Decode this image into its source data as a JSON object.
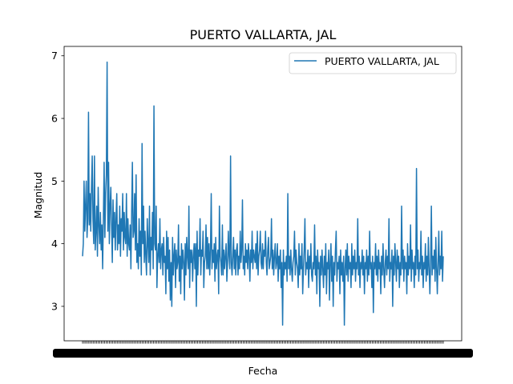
{
  "chart_data": {
    "type": "line",
    "title": "PUERTO VALLARTA, JAL",
    "xlabel": "Fecha",
    "ylabel": "Magnitud",
    "ylim": [
      2.45,
      7.15
    ],
    "yticks": [
      3,
      4,
      5,
      6,
      7
    ],
    "x_tick_labels_legible": false,
    "grid": false,
    "legend_position": "upper right",
    "series": [
      {
        "name": "PUERTO VALLARTA, JAL",
        "color": "#1f77b4",
        "values": [
          3.8,
          4.0,
          5.0,
          4.2,
          4.6,
          5.0,
          4.1,
          4.4,
          6.1,
          4.3,
          4.8,
          4.2,
          4.9,
          5.4,
          4.4,
          4.0,
          5.4,
          3.9,
          4.2,
          4.6,
          3.8,
          4.9,
          4.3,
          4.0,
          4.5,
          3.9,
          4.3,
          3.6,
          4.4,
          5.3,
          4.1,
          4.8,
          5.1,
          6.9,
          4.2,
          5.3,
          4.0,
          4.6,
          4.9,
          4.3,
          3.7,
          4.7,
          4.1,
          4.5,
          3.9,
          4.4,
          4.8,
          3.9,
          4.3,
          4.0,
          4.6,
          3.8,
          4.4,
          4.2,
          4.8,
          3.9,
          4.5,
          4.1,
          4.0,
          4.8,
          3.8,
          4.4,
          4.0,
          3.9,
          4.3,
          3.6,
          4.5,
          5.3,
          4.1,
          4.2,
          4.8,
          3.9,
          5.1,
          3.7,
          4.0,
          3.6,
          4.4,
          3.8,
          4.2,
          3.5,
          5.6,
          4.0,
          4.6,
          3.7,
          4.2,
          3.8,
          3.5,
          4.4,
          4.0,
          3.7,
          4.6,
          3.5,
          4.1,
          3.9,
          4.5,
          3.6,
          6.2,
          4.0,
          3.9,
          4.6,
          3.3,
          3.8,
          4.0,
          3.7,
          4.4,
          3.6,
          3.9,
          4.0,
          3.5,
          4.1,
          3.7,
          3.8,
          3.2,
          4.2,
          3.6,
          4.1,
          3.4,
          3.9,
          3.1,
          3.7,
          3.0,
          4.1,
          3.5,
          3.8,
          4.0,
          3.3,
          3.9,
          3.6,
          3.7,
          4.3,
          3.4,
          3.8,
          3.2,
          4.0,
          3.6,
          3.9,
          3.7,
          3.1,
          4.0,
          3.5,
          4.1,
          3.8,
          3.6,
          4.6,
          3.3,
          3.9,
          3.7,
          3.9,
          3.4,
          3.8,
          4.0,
          3.6,
          4.0,
          3.0,
          4.2,
          3.5,
          3.9,
          3.8,
          4.4,
          3.5,
          3.9,
          3.8,
          4.2,
          3.3,
          3.7,
          3.8,
          4.3,
          3.6,
          4.1,
          3.6,
          4.0,
          3.5,
          3.9,
          4.8,
          3.6,
          3.9,
          3.7,
          4.0,
          3.4,
          4.1,
          3.6,
          3.8,
          3.9,
          3.2,
          4.6,
          3.8,
          3.7,
          3.5,
          4.3,
          3.5,
          3.9,
          3.6,
          3.8,
          4.0,
          3.4,
          3.7,
          4.2,
          3.8,
          3.6,
          5.4,
          3.7,
          3.5,
          3.8,
          4.1,
          3.6,
          3.9,
          3.5,
          3.9,
          4.0,
          3.5,
          3.8,
          3.6,
          4.2,
          3.7,
          3.9,
          4.7,
          3.6,
          3.8,
          3.5,
          4.0,
          3.7,
          3.9,
          3.6,
          4.0,
          3.8,
          3.4,
          3.9,
          3.7,
          4.2,
          3.6,
          3.9,
          3.8,
          3.7,
          4.0,
          3.6,
          4.2,
          3.5,
          3.8,
          3.9,
          4.2,
          3.7,
          3.6,
          4.0,
          3.6,
          3.9,
          3.8,
          4.2,
          3.7,
          3.5,
          3.9,
          4.1,
          3.6,
          3.7,
          3.8,
          4.4,
          3.6,
          3.9,
          3.5,
          3.8,
          4.0,
          3.6,
          3.7,
          4.0,
          3.4,
          3.8,
          3.6,
          3.9,
          3.3,
          3.7,
          2.7,
          3.9,
          3.5,
          3.7,
          3.6,
          3.8,
          3.4,
          4.8,
          3.6,
          3.8,
          3.5,
          3.9,
          3.6,
          3.4,
          3.7,
          3.8,
          4.2,
          3.5,
          3.9,
          3.7,
          3.6,
          3.3,
          4.0,
          3.5,
          3.8,
          3.6,
          4.0,
          3.2,
          3.6,
          3.9,
          4.4,
          3.5,
          3.7,
          3.6,
          3.9,
          3.3,
          3.8,
          3.6,
          4.0,
          3.5,
          3.4,
          3.7,
          3.6,
          4.3,
          3.5,
          3.8,
          3.2,
          3.9,
          3.6,
          3.7,
          3.0,
          3.8,
          3.5,
          3.9,
          3.6,
          3.3,
          3.8,
          3.5,
          4.0,
          3.2,
          3.7,
          3.6,
          3.9,
          3.1,
          3.7,
          4.0,
          3.4,
          3.8,
          3.0,
          3.7,
          3.5,
          3.9,
          4.2,
          3.4,
          3.7,
          3.6,
          3.8,
          3.2,
          3.9,
          3.5,
          3.7,
          3.4,
          3.8,
          2.7,
          3.6,
          3.9,
          3.5,
          4.0,
          3.4,
          3.8,
          3.6,
          3.7,
          3.3,
          4.0,
          3.5,
          3.8,
          3.6,
          3.9,
          3.4,
          3.7,
          3.6,
          4.4,
          3.5,
          3.8,
          3.3,
          3.7,
          3.6,
          3.9,
          3.5,
          3.8,
          3.2,
          3.7,
          3.6,
          3.9,
          3.4,
          3.8,
          3.5,
          4.2,
          3.6,
          3.7,
          3.3,
          3.8,
          2.9,
          3.7,
          3.6,
          4.0,
          3.5,
          3.8,
          3.4,
          3.9,
          3.6,
          3.7,
          3.2,
          3.8,
          3.5,
          4.0,
          3.6,
          3.3,
          3.7,
          3.9,
          3.5,
          3.8,
          3.6,
          4.4,
          3.4,
          3.7,
          3.6,
          3.9,
          3.0,
          3.8,
          3.5,
          4.0,
          3.7,
          3.4,
          3.9,
          3.6,
          3.8,
          3.3,
          3.7,
          3.5,
          4.6,
          3.6,
          3.9,
          3.4,
          3.8,
          3.6,
          3.7,
          3.2,
          4.0,
          3.5,
          3.8,
          3.6,
          4.3,
          3.4,
          3.9,
          3.6,
          3.7,
          3.3,
          3.8,
          3.5,
          5.2,
          3.6,
          3.9,
          3.4,
          3.7,
          3.6,
          4.2,
          3.5,
          3.8,
          3.3,
          3.7,
          3.6,
          4.0,
          3.4,
          3.8,
          3.5,
          4.1,
          3.6,
          3.2,
          3.7,
          4.6,
          3.5,
          3.8,
          3.6,
          3.9,
          3.4,
          4.1,
          3.6,
          3.2,
          3.7,
          4.2,
          3.5,
          3.8,
          3.6,
          4.2,
          3.4,
          3.8
        ]
      }
    ]
  }
}
